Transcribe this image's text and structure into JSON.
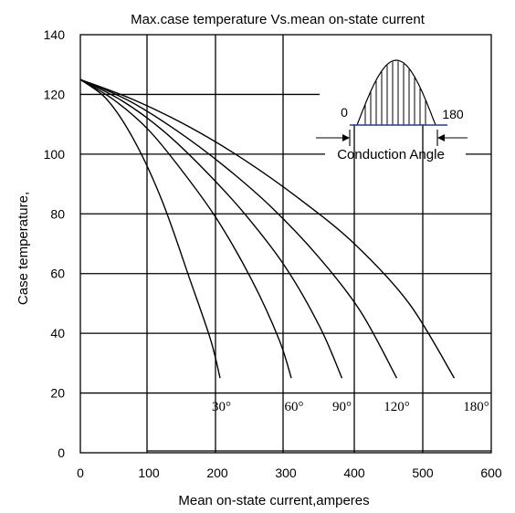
{
  "chart_data": {
    "type": "line",
    "title": "Max.case temperature Vs.mean on-state current",
    "xlabel": "Mean on-state current,amperes",
    "ylabel": "Case temperature,",
    "xlim": [
      0,
      600
    ],
    "ylim": [
      0,
      140
    ],
    "x_ticks": [
      "0",
      "100",
      "200",
      "300",
      "400",
      "500",
      "600"
    ],
    "y_ticks": [
      "0",
      "20",
      "40",
      "60",
      "80",
      "100",
      "120",
      "140"
    ],
    "grid": true,
    "series": [
      {
        "name": "30°",
        "x": [
          0,
          40,
          80,
          120,
          160,
          190,
          204
        ],
        "y": [
          125,
          118,
          104,
          84,
          58,
          38,
          25
        ]
      },
      {
        "name": "60°",
        "x": [
          0,
          50,
          100,
          150,
          200,
          250,
          290,
          308
        ],
        "y": [
          125,
          118,
          108,
          94,
          78,
          58,
          38,
          25
        ]
      },
      {
        "name": "90°",
        "x": [
          0,
          60,
          120,
          180,
          240,
          300,
          350,
          382
        ],
        "y": [
          125,
          118,
          108,
          95,
          80,
          62,
          42,
          25
        ]
      },
      {
        "name": "120°",
        "x": [
          0,
          70,
          140,
          210,
          280,
          350,
          410,
          462
        ],
        "y": [
          125,
          118,
          108,
          96,
          82,
          65,
          47,
          25
        ]
      },
      {
        "name": "180°",
        "x": [
          0,
          80,
          160,
          240,
          320,
          400,
          480,
          546
        ],
        "y": [
          125,
          118,
          109,
          98,
          85,
          70,
          50,
          25
        ]
      }
    ],
    "curve_labels": [
      {
        "text": "30°",
        "x": 206,
        "y": 14
      },
      {
        "text": "60°",
        "x": 312,
        "y": 14
      },
      {
        "text": "90°",
        "x": 382,
        "y": 14
      },
      {
        "text": "120°",
        "x": 462,
        "y": 14
      },
      {
        "text": "180°",
        "x": 578,
        "y": 14
      }
    ],
    "inset": {
      "start_label": "0",
      "end_label": "180",
      "caption": "Conduction Angle",
      "axis_color": "#2b3a8f"
    }
  }
}
